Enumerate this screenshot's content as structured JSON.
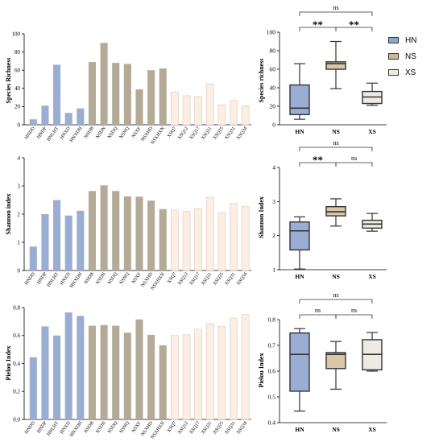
{
  "legend": [
    {
      "label": "HN",
      "color": "#8fa6cc"
    },
    {
      "label": "NS",
      "color": "#c8b99a"
    },
    {
      "label": "XS",
      "color": "#eeeae0"
    }
  ],
  "colors": {
    "HN": "#9aaed3",
    "NS": "#b3ab97",
    "XS": "#fbeee4"
  },
  "chart_data": [
    {
      "type": "bar",
      "ylabel": "Species Richness",
      "ylim": [
        0,
        100
      ],
      "yticks": [
        0,
        20,
        40,
        60,
        80,
        100
      ],
      "categories": [
        "HNDD",
        "HNDP",
        "HNLHT",
        "HNXD",
        "HNXDH",
        "NSDB",
        "NSDN",
        "NSDQ",
        "NSNQ",
        "NSXF",
        "NSXHD",
        "NSXHXN",
        "XSQ7",
        "XSQ12",
        "XSQ17",
        "XSQ21",
        "XSQ25",
        "XSQ31",
        "XSQ34"
      ],
      "groups": [
        "HN",
        "HN",
        "HN",
        "HN",
        "HN",
        "NS",
        "NS",
        "NS",
        "NS",
        "NS",
        "NS",
        "NS",
        "XS",
        "XS",
        "XS",
        "XS",
        "XS",
        "XS",
        "XS"
      ],
      "values": [
        6,
        21,
        66,
        13,
        18,
        69,
        90,
        68,
        67,
        39,
        60,
        62,
        36,
        32,
        31,
        45,
        22,
        27,
        21
      ]
    },
    {
      "type": "bar",
      "ylabel": "Shannon index",
      "ylim": [
        0,
        4
      ],
      "yticks": [
        0,
        1,
        2,
        3,
        4
      ],
      "categories": [
        "HNDD",
        "HNDP",
        "HNLHT",
        "HNXD",
        "HNXDH",
        "NSDB",
        "NSDN",
        "NSDQ",
        "NSNQ",
        "NSXF",
        "NSXHD",
        "NSXHXN",
        "XSQ7",
        "XSQ12",
        "XSQ17",
        "XSQ21",
        "XSQ25",
        "XSQ31",
        "XSQ34"
      ],
      "groups": [
        "HN",
        "HN",
        "HN",
        "HN",
        "HN",
        "NS",
        "NS",
        "NS",
        "NS",
        "NS",
        "NS",
        "NS",
        "XS",
        "XS",
        "XS",
        "XS",
        "XS",
        "XS",
        "XS"
      ],
      "values": [
        0.85,
        2.0,
        2.5,
        1.95,
        2.12,
        2.82,
        3.02,
        2.82,
        2.63,
        2.62,
        2.48,
        2.18,
        2.15,
        2.1,
        2.2,
        2.6,
        2.05,
        2.38,
        2.27
      ]
    },
    {
      "type": "bar",
      "ylabel": "Pielou Index",
      "ylim": [
        0,
        0.8
      ],
      "yticks": [
        0.0,
        0.2,
        0.4,
        0.6,
        0.8
      ],
      "categories": [
        "HNDD",
        "HNDP",
        "HNLHT",
        "HNXD",
        "HNXDH",
        "NSDB",
        "NSDN",
        "NSDQ",
        "NSNQ",
        "NSXF",
        "NSXHD",
        "NSXHXN",
        "XSQ7",
        "XSQ12",
        "XSQ17",
        "XSQ21",
        "XSQ25",
        "XSQ31",
        "XSQ34"
      ],
      "groups": [
        "HN",
        "HN",
        "HN",
        "HN",
        "HN",
        "NS",
        "NS",
        "NS",
        "NS",
        "NS",
        "NS",
        "NS",
        "XS",
        "XS",
        "XS",
        "XS",
        "XS",
        "XS",
        "XS"
      ],
      "values": [
        0.445,
        0.665,
        0.6,
        0.765,
        0.74,
        0.67,
        0.675,
        0.67,
        0.62,
        0.715,
        0.605,
        0.53,
        0.6,
        0.605,
        0.645,
        0.685,
        0.665,
        0.725,
        0.75
      ]
    },
    {
      "type": "box",
      "ylabel": "Species richness",
      "ylim": [
        0,
        100
      ],
      "yticks": [
        0,
        20,
        40,
        60,
        80,
        100
      ],
      "categories": [
        "HN",
        "NS",
        "XS"
      ],
      "boxes": [
        {
          "min": 6,
          "q1": 11,
          "median": 18,
          "q3": 43,
          "max": 66
        },
        {
          "min": 39,
          "q1": 60,
          "median": 66,
          "q3": 68,
          "max": 90
        },
        {
          "min": 21,
          "q1": 23,
          "median": 30,
          "q3": 36,
          "max": 45
        }
      ],
      "significance": [
        {
          "from": 0,
          "to": 1,
          "label": "**"
        },
        {
          "from": 1,
          "to": 2,
          "label": "**"
        },
        {
          "from": 0,
          "to": 2,
          "label": "ns"
        }
      ]
    },
    {
      "type": "box",
      "ylabel": "Shannon Index",
      "ylim": [
        1,
        4
      ],
      "yticks": [
        1,
        2,
        3,
        4
      ],
      "categories": [
        "HN",
        "NS",
        "XS"
      ],
      "boxes": [
        {
          "min": 1.02,
          "q1": 1.58,
          "median": 2.14,
          "q3": 2.4,
          "max": 2.55
        },
        {
          "min": 2.28,
          "q1": 2.58,
          "median": 2.7,
          "q3": 2.85,
          "max": 3.08
        },
        {
          "min": 2.13,
          "q1": 2.22,
          "median": 2.34,
          "q3": 2.45,
          "max": 2.65
        }
      ],
      "significance": [
        {
          "from": 0,
          "to": 1,
          "label": "**"
        },
        {
          "from": 1,
          "to": 2,
          "label": "ns"
        },
        {
          "from": 0,
          "to": 2,
          "label": "ns"
        }
      ]
    },
    {
      "type": "box",
      "ylabel": "Pielou Index",
      "ylim": [
        0.4,
        0.8
      ],
      "yticks": [
        0.4,
        0.5,
        0.6,
        0.7,
        0.8
      ],
      "categories": [
        "HN",
        "NS",
        "XS"
      ],
      "boxes": [
        {
          "min": 0.445,
          "q1": 0.522,
          "median": 0.665,
          "q3": 0.748,
          "max": 0.765
        },
        {
          "min": 0.53,
          "q1": 0.61,
          "median": 0.665,
          "q3": 0.672,
          "max": 0.715
        },
        {
          "min": 0.6,
          "q1": 0.605,
          "median": 0.665,
          "q3": 0.722,
          "max": 0.75
        }
      ],
      "significance": [
        {
          "from": 0,
          "to": 1,
          "label": "ns"
        },
        {
          "from": 1,
          "to": 2,
          "label": "ns"
        },
        {
          "from": 0,
          "to": 2,
          "label": "ns"
        }
      ]
    }
  ]
}
